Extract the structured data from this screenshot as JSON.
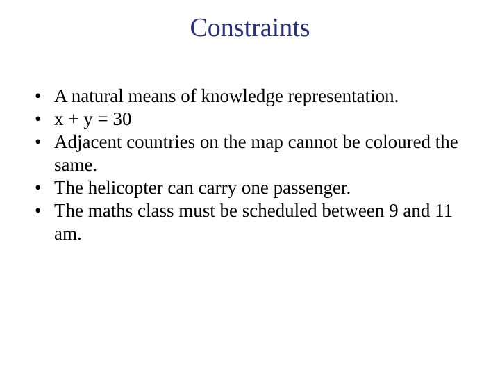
{
  "slide": {
    "title": "Constraints",
    "title_color": "#27317d",
    "title_fontsize": 38,
    "body_fontsize": 27,
    "bullets": [
      "A natural means of knowledge representation.",
      "x + y = 30",
      "Adjacent countries on the map cannot be coloured the same.",
      "The helicopter can carry one passenger.",
      "The maths class must be scheduled between 9 and 11 am."
    ],
    "background_color": "#ffffff",
    "text_color": "#000000"
  }
}
